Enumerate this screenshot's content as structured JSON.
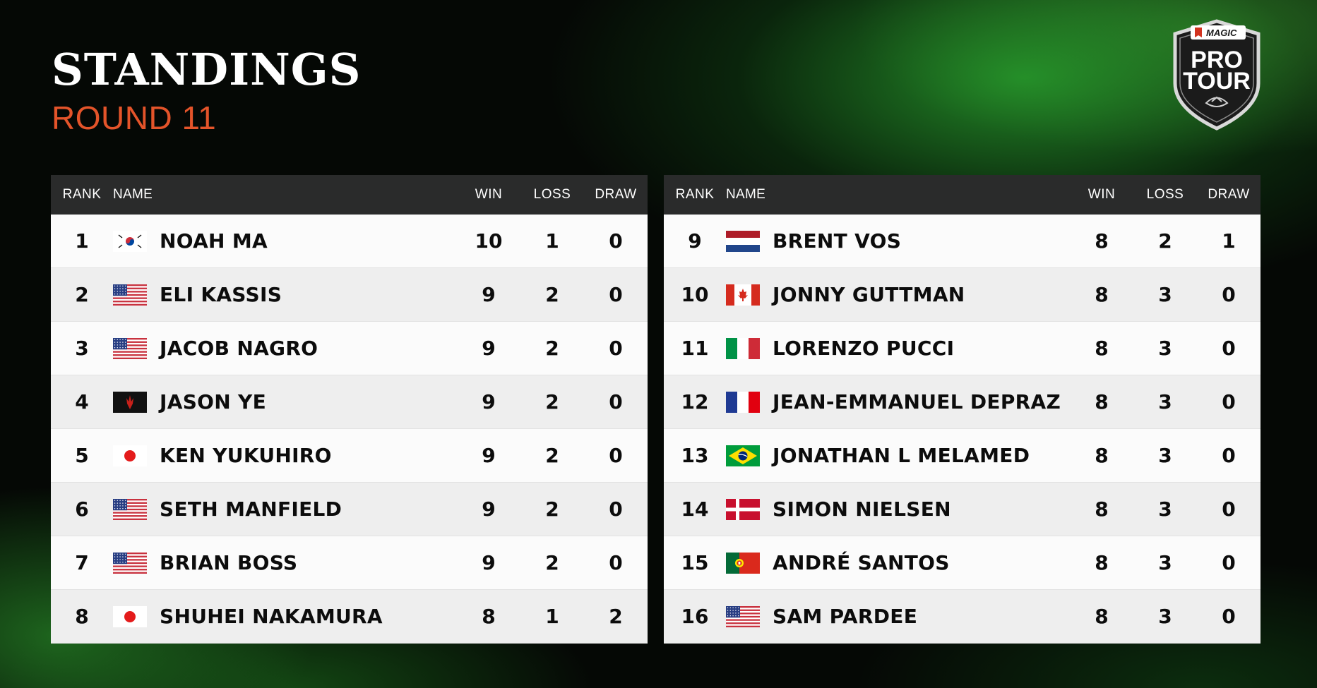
{
  "header": {
    "title": "STANDINGS",
    "subtitle": "ROUND 11"
  },
  "logo": {
    "brand": "MAGIC",
    "line1": "PRO",
    "line2": "TOUR"
  },
  "columns": {
    "rank": "RANK",
    "name": "NAME",
    "win": "WIN",
    "loss": "LOSS",
    "draw": "DRAW"
  },
  "standings_left": [
    {
      "rank": "1",
      "flag": "south-korea",
      "name": "NOAH MA",
      "win": "10",
      "loss": "1",
      "draw": "0"
    },
    {
      "rank": "2",
      "flag": "usa",
      "name": "ELI KASSIS",
      "win": "9",
      "loss": "2",
      "draw": "0"
    },
    {
      "rank": "3",
      "flag": "usa",
      "name": "JACOB NAGRO",
      "win": "9",
      "loss": "2",
      "draw": "0"
    },
    {
      "rank": "4",
      "flag": "magic-planeswalker",
      "name": "JASON YE",
      "win": "9",
      "loss": "2",
      "draw": "0"
    },
    {
      "rank": "5",
      "flag": "japan",
      "name": "KEN YUKUHIRO",
      "win": "9",
      "loss": "2",
      "draw": "0"
    },
    {
      "rank": "6",
      "flag": "usa",
      "name": "SETH MANFIELD",
      "win": "9",
      "loss": "2",
      "draw": "0"
    },
    {
      "rank": "7",
      "flag": "usa",
      "name": "BRIAN BOSS",
      "win": "9",
      "loss": "2",
      "draw": "0"
    },
    {
      "rank": "8",
      "flag": "japan",
      "name": "SHUHEI NAKAMURA",
      "win": "8",
      "loss": "1",
      "draw": "2"
    }
  ],
  "standings_right": [
    {
      "rank": "9",
      "flag": "netherlands",
      "name": "BRENT VOS",
      "win": "8",
      "loss": "2",
      "draw": "1"
    },
    {
      "rank": "10",
      "flag": "canada",
      "name": "JONNY GUTTMAN",
      "win": "8",
      "loss": "3",
      "draw": "0"
    },
    {
      "rank": "11",
      "flag": "italy",
      "name": "LORENZO PUCCI",
      "win": "8",
      "loss": "3",
      "draw": "0"
    },
    {
      "rank": "12",
      "flag": "france",
      "name": "JEAN-EMMANUEL DEPRAZ",
      "win": "8",
      "loss": "3",
      "draw": "0"
    },
    {
      "rank": "13",
      "flag": "brazil",
      "name": "JONATHAN L MELAMED",
      "win": "8",
      "loss": "3",
      "draw": "0"
    },
    {
      "rank": "14",
      "flag": "denmark",
      "name": "SIMON NIELSEN",
      "win": "8",
      "loss": "3",
      "draw": "0"
    },
    {
      "rank": "15",
      "flag": "portugal",
      "name": "ANDRÉ SANTOS",
      "win": "8",
      "loss": "3",
      "draw": "0"
    },
    {
      "rank": "16",
      "flag": "usa",
      "name": "SAM PARDEE",
      "win": "8",
      "loss": "3",
      "draw": "0"
    }
  ],
  "colors": {
    "accent": "#e4542a",
    "header_bg": "#2a2b2b",
    "row_light": "#fbfbfb",
    "row_dark": "#eeeeee"
  }
}
